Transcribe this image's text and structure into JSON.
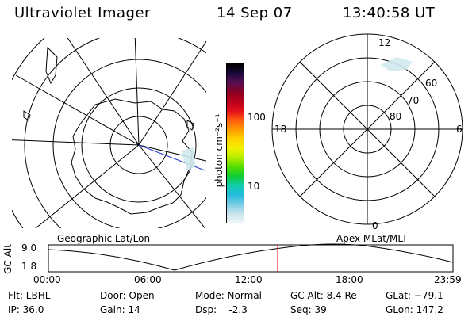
{
  "header": {
    "instrument": "Ultraviolet Imager",
    "date": "14 Sep 07",
    "time": "13:40:58 UT"
  },
  "left_map": {
    "caption": "Geographic Lat/Lon"
  },
  "right_map": {
    "caption": "Apex MLat/MLT",
    "mlt_labels": [
      "12",
      "18",
      "6",
      "0"
    ],
    "lat_labels": [
      "60",
      "70",
      "80"
    ]
  },
  "colorbar": {
    "unit_label": "photon cm⁻²s⁻¹",
    "tick_labels": [
      "100",
      "10"
    ],
    "colors": [
      "#000000",
      "#1a0a3a",
      "#5a0f55",
      "#8a0020",
      "#b8001a",
      "#e0101a",
      "#ff5a10",
      "#ff9a00",
      "#ffd200",
      "#f0f000",
      "#b8ee00",
      "#55dd00",
      "#11cc33",
      "#11ccaa",
      "#22bbdd",
      "#77cce4",
      "#c6e3ec",
      "#eef6f8"
    ]
  },
  "altitude_plot": {
    "ylabel": "GC Alt",
    "y_ticks": [
      "9.0",
      "1.8"
    ],
    "x_ticks": [
      "00:00",
      "06:00",
      "12:00",
      "18:00",
      "23:59"
    ],
    "marker_color": "#ff0000"
  },
  "footer": {
    "filter": "Flt: LBHL",
    "ip": "IP: 36.0",
    "door": "Door: Open",
    "gain": "Gain: 14",
    "mode": "Mode: Normal",
    "dsp": "Dsp:    -2.3",
    "gc_alt": "GC Alt: 8.4 Re",
    "seq": "Seq: 39",
    "glat": "GLat: −79.1",
    "glon": "GLon: 147.2"
  }
}
